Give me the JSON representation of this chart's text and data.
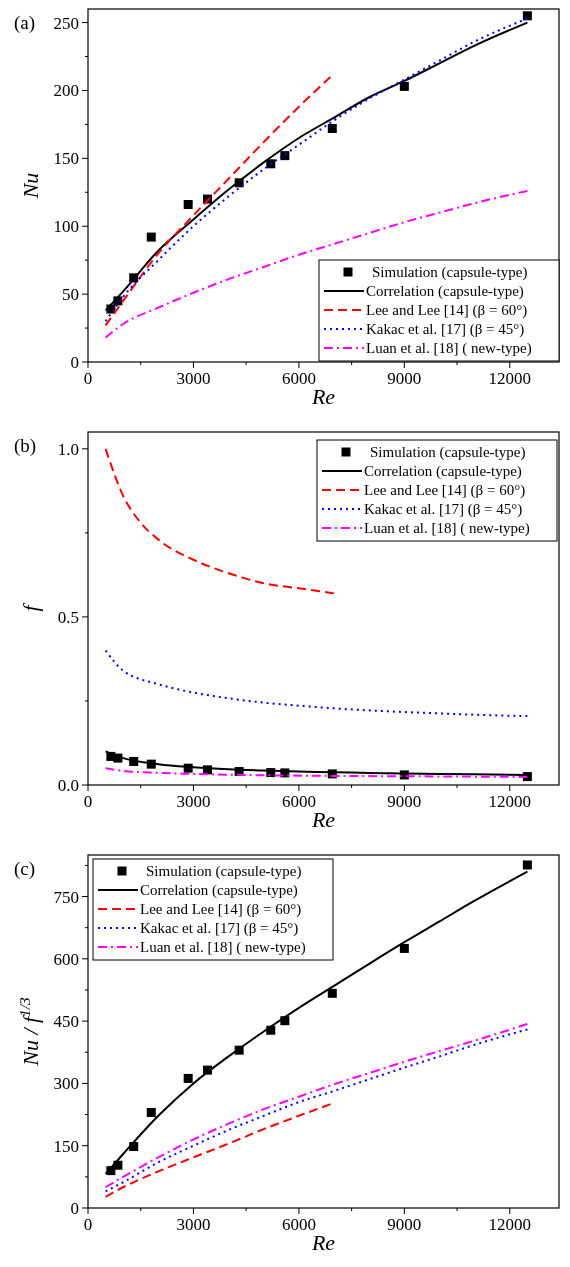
{
  "chart_data": [
    {
      "type": "line",
      "title": "(a)",
      "xlabel": "Re",
      "ylabel": "Nu",
      "xlim": [
        0,
        13400
      ],
      "ylim": [
        0,
        260
      ],
      "xticks": [
        0,
        {
          "value": 1500,
          "label": null
        },
        3000,
        {
          "value": 4500,
          "label": null
        },
        6000,
        {
          "value": 7500,
          "label": null
        },
        9000,
        {
          "value": 10500,
          "label": null
        },
        12000
      ],
      "yticks": [
        0,
        {
          "value": 25,
          "label": null
        },
        50,
        {
          "value": 75,
          "label": null
        },
        100,
        {
          "value": 125,
          "label": null
        },
        150,
        {
          "value": 175,
          "label": null
        },
        200,
        {
          "value": 225,
          "label": null
        },
        250
      ],
      "legend": "bottom right",
      "grid": false,
      "series": [
        {
          "name": "Simulation (capsule-type)",
          "type": "scatter",
          "marker": "square",
          "color": "#000000",
          "x": [
            650,
            850,
            1300,
            1800,
            2850,
            3400,
            4300,
            5200,
            5600,
            6950,
            9000,
            12500
          ],
          "values": [
            39,
            45,
            62,
            92,
            116,
            120,
            132,
            146,
            152,
            172,
            203,
            255
          ]
        },
        {
          "name": "Correlation (capsule-type)",
          "type": "line",
          "line_style": "solid",
          "color": "#000000",
          "x": [
            500,
            1000,
            2000,
            3000,
            4000,
            5000,
            6000,
            7000,
            8000,
            9000,
            10000,
            11000,
            12500
          ],
          "values": [
            38,
            52,
            82,
            105,
            127,
            147,
            165,
            180,
            195,
            207,
            220,
            233,
            250
          ]
        },
        {
          "name": "Lee and Lee [14] (β = 60°)",
          "type": "line",
          "line_style": "dashed",
          "color": "#ff0000",
          "x": [
            500,
            1000,
            2000,
            3000,
            4000,
            5000,
            6000,
            6900
          ],
          "values": [
            27,
            45,
            80,
            108,
            135,
            162,
            188,
            210
          ]
        },
        {
          "name": "Kakac et al. [17] (β = 45°)",
          "type": "line",
          "line_style": "dotted",
          "color": "#0000ff",
          "x": [
            500,
            1000,
            2000,
            3000,
            4000,
            5000,
            6000,
            7000,
            8000,
            9000,
            10000,
            11000,
            12500
          ],
          "values": [
            30,
            48,
            75,
            100,
            122,
            142,
            160,
            178,
            194,
            208,
            222,
            236,
            253
          ]
        },
        {
          "name": "Luan et al. [18] ( new-type)",
          "type": "line",
          "line_style": "dashdot",
          "color": "#ff00ff",
          "x": [
            500,
            1000,
            2000,
            3000,
            4000,
            5000,
            6000,
            7000,
            8000,
            9000,
            10000,
            11000,
            12500
          ],
          "values": [
            18,
            28,
            40,
            51,
            61,
            70,
            79,
            87,
            95,
            103,
            110,
            117,
            126
          ]
        }
      ]
    },
    {
      "type": "line",
      "title": "(b)",
      "xlabel": "Re",
      "ylabel": "f",
      "xlim": [
        0,
        13400
      ],
      "ylim": [
        0,
        1.05
      ],
      "xticks": [
        0,
        {
          "value": 1500,
          "label": null
        },
        3000,
        {
          "value": 4500,
          "label": null
        },
        6000,
        {
          "value": 7500,
          "label": null
        },
        9000,
        {
          "value": 10500,
          "label": null
        },
        12000
      ],
      "yticks": [
        {
          "value": 0,
          "label": "0.0"
        },
        {
          "value": 0.25,
          "label": null
        },
        0.5,
        {
          "value": 0.75,
          "label": null
        },
        {
          "value": 1,
          "label": "1.0"
        }
      ],
      "legend": "top right",
      "grid": false,
      "series": [
        {
          "name": "Simulation (capsule-type)",
          "type": "scatter",
          "marker": "square",
          "color": "#000000",
          "x": [
            650,
            850,
            1300,
            1800,
            2850,
            3400,
            4300,
            5200,
            5600,
            6950,
            9000,
            12500
          ],
          "values": [
            0.085,
            0.08,
            0.07,
            0.062,
            0.05,
            0.045,
            0.04,
            0.037,
            0.036,
            0.033,
            0.03,
            0.025
          ]
        },
        {
          "name": "Correlation (capsule-type)",
          "type": "line",
          "line_style": "solid",
          "color": "#000000",
          "x": [
            500,
            1000,
            2000,
            3000,
            4000,
            5000,
            6000,
            7000,
            8000,
            9000,
            10000,
            11000,
            12500
          ],
          "values": [
            0.1,
            0.08,
            0.062,
            0.053,
            0.047,
            0.043,
            0.04,
            0.038,
            0.036,
            0.034,
            0.033,
            0.032,
            0.03
          ]
        },
        {
          "name": "Lee and Lee [14] (β = 60°)",
          "type": "line",
          "line_style": "dashed",
          "color": "#ff0000",
          "x": [
            500,
            1000,
            1500,
            2000,
            3000,
            4000,
            5000,
            6000,
            7000
          ],
          "values": [
            1.0,
            0.86,
            0.78,
            0.73,
            0.67,
            0.63,
            0.6,
            0.585,
            0.57
          ]
        },
        {
          "name": "Kakac et al. [17] (β = 45°)",
          "type": "line",
          "line_style": "dotted",
          "color": "#0000ff",
          "x": [
            500,
            1000,
            2000,
            3000,
            4000,
            5000,
            6000,
            7000,
            8000,
            9000,
            10000,
            11000,
            12500
          ],
          "values": [
            0.4,
            0.34,
            0.3,
            0.275,
            0.258,
            0.245,
            0.236,
            0.228,
            0.222,
            0.217,
            0.213,
            0.209,
            0.205
          ]
        },
        {
          "name": "Luan et al. [18] ( new-type)",
          "type": "line",
          "line_style": "dashdot",
          "color": "#ff00ff",
          "x": [
            500,
            1000,
            2000,
            3000,
            5000,
            7000,
            9000,
            12500
          ],
          "values": [
            0.05,
            0.042,
            0.036,
            0.033,
            0.029,
            0.027,
            0.026,
            0.024
          ]
        }
      ]
    },
    {
      "type": "line",
      "title": "(c)",
      "xlabel": "Re",
      "ylabel": "Nu / f$^{1/3}$",
      "xlim": [
        0,
        13400
      ],
      "ylim": [
        0,
        850
      ],
      "xticks": [
        0,
        {
          "value": 1500,
          "label": null
        },
        3000,
        {
          "value": 4500,
          "label": null
        },
        6000,
        {
          "value": 7500,
          "label": null
        },
        9000,
        {
          "value": 10500,
          "label": null
        },
        12000
      ],
      "yticks": [
        0,
        {
          "value": 75,
          "label": null
        },
        150,
        {
          "value": 225,
          "label": null
        },
        300,
        {
          "value": 375,
          "label": null
        },
        450,
        {
          "value": 525,
          "label": null
        },
        600,
        {
          "value": 675,
          "label": null
        },
        750,
        {
          "value": 825,
          "label": null
        }
      ],
      "legend": "top left",
      "grid": false,
      "series": [
        {
          "name": "Simulation (capsule-type)",
          "type": "scatter",
          "marker": "square",
          "color": "#000000",
          "x": [
            650,
            850,
            1300,
            1800,
            2850,
            3400,
            4300,
            5200,
            5600,
            6950,
            9000,
            12500
          ],
          "values": [
            90,
            103,
            148,
            230,
            312,
            332,
            380,
            428,
            451,
            517,
            625,
            826
          ]
        },
        {
          "name": "Correlation (capsule-type)",
          "type": "line",
          "line_style": "solid",
          "color": "#000000",
          "x": [
            500,
            1000,
            2000,
            3000,
            4000,
            5000,
            6000,
            7000,
            8000,
            9000,
            10000,
            11000,
            12500
          ],
          "values": [
            82,
            130,
            222,
            300,
            365,
            425,
            482,
            535,
            588,
            640,
            690,
            740,
            810
          ]
        },
        {
          "name": "Lee and Lee [14] (β = 60°)",
          "type": "line",
          "line_style": "dashed",
          "color": "#ff0000",
          "x": [
            500,
            1000,
            2000,
            3000,
            4000,
            5000,
            6000,
            6900
          ],
          "values": [
            27,
            50,
            88,
            122,
            155,
            190,
            222,
            250
          ]
        },
        {
          "name": "Kakac et al. [17] (β = 45°)",
          "type": "line",
          "line_style": "dotted",
          "color": "#0000ff",
          "x": [
            500,
            1000,
            2000,
            3000,
            4000,
            5000,
            6000,
            7000,
            8000,
            9000,
            10000,
            11000,
            12500
          ],
          "values": [
            40,
            62,
            110,
            150,
            188,
            222,
            255,
            282,
            310,
            338,
            365,
            393,
            430
          ]
        },
        {
          "name": "Luan et al. [18] ( new-type)",
          "type": "line",
          "line_style": "dashdot",
          "color": "#ff00ff",
          "x": [
            500,
            1000,
            2000,
            3000,
            4000,
            5000,
            6000,
            7000,
            8000,
            9000,
            10000,
            11000,
            12500
          ],
          "values": [
            50,
            75,
            122,
            165,
            203,
            238,
            268,
            298,
            325,
            352,
            378,
            403,
            443
          ]
        }
      ]
    }
  ]
}
